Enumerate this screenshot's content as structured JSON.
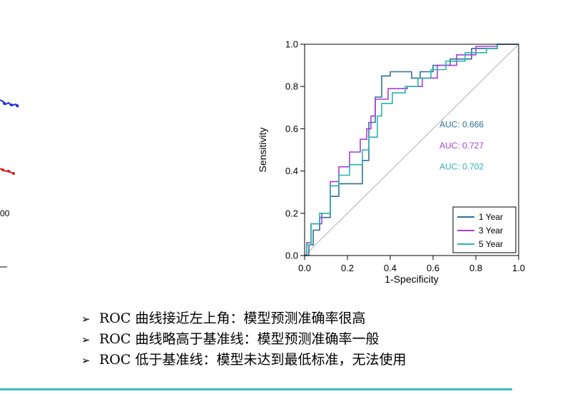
{
  "left_fragment": {
    "partial_tick_label": "00"
  },
  "chart_data": {
    "type": "line",
    "xlabel": "1-Specificity",
    "ylabel": "Sensitivity",
    "xlim": [
      0,
      1
    ],
    "ylim": [
      0,
      1
    ],
    "xticks": [
      "0.0",
      "0.2",
      "0.4",
      "0.6",
      "0.8",
      "1.0"
    ],
    "yticks": [
      "0.0",
      "0.2",
      "0.4",
      "0.6",
      "0.8",
      "1.0"
    ],
    "grid": false,
    "legend_position": "bottom-right",
    "reference_line": {
      "x": [
        0,
        1
      ],
      "y": [
        0,
        1
      ],
      "color": "#b0b0b0"
    },
    "series": [
      {
        "name": "1 Year",
        "color": "#2f6f9a",
        "auc": "AUC: 0.666",
        "x": [
          0,
          0.02,
          0.02,
          0.04,
          0.04,
          0.07,
          0.07,
          0.12,
          0.12,
          0.16,
          0.16,
          0.27,
          0.27,
          0.3,
          0.3,
          0.33,
          0.33,
          0.36,
          0.36,
          0.4,
          0.4,
          0.5,
          0.5,
          0.54,
          0.54,
          0.6,
          0.6,
          0.68,
          0.68,
          0.78,
          0.78,
          0.9,
          0.9,
          1.0
        ],
        "y": [
          0,
          0,
          0.05,
          0.05,
          0.12,
          0.12,
          0.18,
          0.18,
          0.28,
          0.28,
          0.34,
          0.34,
          0.45,
          0.45,
          0.63,
          0.63,
          0.75,
          0.75,
          0.85,
          0.85,
          0.87,
          0.87,
          0.84,
          0.84,
          0.87,
          0.87,
          0.9,
          0.9,
          0.93,
          0.93,
          0.98,
          0.98,
          1.0,
          1.0
        ]
      },
      {
        "name": "3 Year",
        "color": "#a43fd6",
        "auc": "AUC: 0.727",
        "x": [
          0,
          0.01,
          0.01,
          0.03,
          0.03,
          0.08,
          0.08,
          0.12,
          0.12,
          0.16,
          0.16,
          0.21,
          0.21,
          0.26,
          0.26,
          0.29,
          0.29,
          0.31,
          0.31,
          0.33,
          0.33,
          0.39,
          0.39,
          0.48,
          0.48,
          0.55,
          0.55,
          0.62,
          0.62,
          0.71,
          0.71,
          0.8,
          0.8,
          0.9,
          0.9,
          1.0
        ],
        "y": [
          0,
          0,
          0.06,
          0.06,
          0.15,
          0.15,
          0.2,
          0.2,
          0.35,
          0.35,
          0.42,
          0.42,
          0.49,
          0.49,
          0.55,
          0.55,
          0.6,
          0.6,
          0.66,
          0.66,
          0.74,
          0.74,
          0.79,
          0.79,
          0.8,
          0.8,
          0.84,
          0.84,
          0.9,
          0.9,
          0.95,
          0.95,
          0.99,
          0.99,
          1.0,
          1.0
        ]
      },
      {
        "name": "5 Year",
        "color": "#2bb3ad",
        "auc": "AUC: 0.702",
        "x": [
          0,
          0.01,
          0.01,
          0.03,
          0.03,
          0.07,
          0.07,
          0.12,
          0.12,
          0.16,
          0.16,
          0.21,
          0.21,
          0.27,
          0.27,
          0.3,
          0.3,
          0.34,
          0.34,
          0.36,
          0.36,
          0.41,
          0.41,
          0.47,
          0.47,
          0.53,
          0.53,
          0.59,
          0.59,
          0.66,
          0.66,
          0.75,
          0.75,
          0.85,
          0.85,
          0.9,
          0.9,
          1.0
        ],
        "y": [
          0,
          0,
          0.05,
          0.05,
          0.15,
          0.15,
          0.2,
          0.2,
          0.33,
          0.33,
          0.38,
          0.38,
          0.43,
          0.43,
          0.5,
          0.5,
          0.56,
          0.56,
          0.66,
          0.66,
          0.72,
          0.72,
          0.77,
          0.77,
          0.8,
          0.8,
          0.84,
          0.84,
          0.88,
          0.88,
          0.92,
          0.92,
          0.96,
          0.96,
          0.98,
          0.98,
          1.0,
          1.0
        ]
      }
    ]
  },
  "bullets": {
    "marker": "➢",
    "items": [
      "ROC 曲线接近左上角：模型预测准确率很高",
      "ROC 曲线略高于基准线：模型预测准确率一般",
      "ROC 低于基准线：模型未达到最低标准，无法使用"
    ]
  },
  "colors": {
    "accent_rule": "#3cc1b5",
    "partial_blue_series": "#1f2fd6",
    "partial_red_series": "#d62020"
  }
}
